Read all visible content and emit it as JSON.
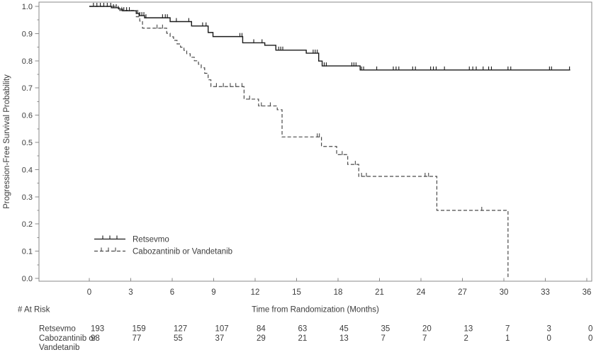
{
  "chart_data": {
    "type": "line",
    "subtype": "kaplan-meier-step",
    "title": "",
    "xlabel": "Time from Randomization (Months)",
    "ylabel": "Progression-Free Survival Probability",
    "xlim": [
      0,
      36
    ],
    "x_tick_step": 3,
    "x_ticks": [
      0,
      3,
      6,
      9,
      12,
      15,
      18,
      21,
      24,
      27,
      30,
      33,
      36
    ],
    "ylim": [
      0.0,
      1.0
    ],
    "y_tick_step": 0.1,
    "y_minor_tick_step": 0.05,
    "y_ticks": [
      "0.0",
      "0.1",
      "0.2",
      "0.3",
      "0.4",
      "0.5",
      "0.6",
      "0.7",
      "0.8",
      "0.9",
      "1.0"
    ],
    "grid": "off",
    "legend_position": "inside-lower-left",
    "colors": {
      "retsevmo": "#1a1a1a",
      "comparator": "#4a4a4a",
      "axis": "#8a8a8a",
      "text": "#3c3c3c"
    },
    "series": [
      {
        "name": "Retsevmo",
        "line_style": "solid",
        "color": "#1a1a1a",
        "end_month": 34.8,
        "steps": [
          [
            0,
            1.0
          ],
          [
            1.6,
            0.995
          ],
          [
            2.15,
            0.99
          ],
          [
            2.4,
            0.984
          ],
          [
            3.4,
            0.974
          ],
          [
            3.6,
            0.966
          ],
          [
            4.0,
            0.958
          ],
          [
            5.85,
            0.944
          ],
          [
            7.4,
            0.928
          ],
          [
            8.6,
            0.904
          ],
          [
            8.95,
            0.889
          ],
          [
            11.1,
            0.866
          ],
          [
            12.7,
            0.857
          ],
          [
            13.5,
            0.839
          ],
          [
            15.7,
            0.828
          ],
          [
            16.6,
            0.799
          ],
          [
            16.85,
            0.781
          ],
          [
            19.6,
            0.766
          ]
        ],
        "censor_months": [
          0.3,
          0.55,
          0.8,
          1.05,
          1.3,
          1.55,
          1.75,
          1.95,
          2.5,
          2.7,
          2.9,
          3.5,
          3.65,
          3.8,
          3.95,
          4.1,
          5.3,
          5.5,
          5.65,
          6.3,
          7.2,
          8.2,
          8.45,
          10.9,
          11.05,
          11.9,
          12.5,
          13.7,
          13.85,
          14.0,
          16.2,
          16.35,
          16.5,
          17.0,
          17.15,
          19.0,
          19.15,
          19.3,
          19.7,
          19.85,
          20.8,
          22.0,
          22.2,
          22.4,
          23.4,
          23.6,
          24.7,
          24.9,
          25.1,
          25.7,
          27.5,
          27.75,
          28.0,
          28.5,
          28.9,
          29.1,
          30.3,
          30.5,
          33.3,
          33.45,
          34.75
        ]
      },
      {
        "name": "Cabozantinib or Vandetanib",
        "line_style": "dashed",
        "color": "#4a4a4a",
        "end_month": 30.3,
        "steps": [
          [
            0,
            1.0
          ],
          [
            2.1,
            0.985
          ],
          [
            3.4,
            0.962
          ],
          [
            3.65,
            0.946
          ],
          [
            3.85,
            0.92
          ],
          [
            5.6,
            0.901
          ],
          [
            5.85,
            0.888
          ],
          [
            6.1,
            0.875
          ],
          [
            6.35,
            0.862
          ],
          [
            6.6,
            0.85
          ],
          [
            6.85,
            0.838
          ],
          [
            7.05,
            0.826
          ],
          [
            7.3,
            0.813
          ],
          [
            7.6,
            0.8
          ],
          [
            7.9,
            0.787
          ],
          [
            8.1,
            0.774
          ],
          [
            8.35,
            0.754
          ],
          [
            8.6,
            0.73
          ],
          [
            8.8,
            0.705
          ],
          [
            11.2,
            0.659
          ],
          [
            12.25,
            0.634
          ],
          [
            13.6,
            0.62
          ],
          [
            13.95,
            0.52
          ],
          [
            16.8,
            0.485
          ],
          [
            17.9,
            0.455
          ],
          [
            18.7,
            0.419
          ],
          [
            19.5,
            0.375
          ],
          [
            25.15,
            0.25
          ],
          [
            30.3,
            0.0
          ]
        ],
        "censor_months": [
          2.35,
          4.9,
          5.3,
          9.2,
          9.7,
          10.2,
          10.6,
          11.05,
          11.6,
          12.45,
          13.1,
          16.5,
          16.65,
          18.3,
          19.25,
          19.7,
          20.05,
          24.3,
          24.55,
          28.4
        ]
      }
    ],
    "at_risk": {
      "label": "# At Risk",
      "times": [
        0,
        3,
        6,
        9,
        12,
        15,
        18,
        21,
        24,
        27,
        30,
        33,
        36
      ],
      "rows": [
        {
          "label_lines": [
            "Retsevmo"
          ],
          "counts": [
            193,
            159,
            127,
            107,
            84,
            63,
            45,
            35,
            20,
            13,
            7,
            3,
            0
          ]
        },
        {
          "label_lines": [
            "Cabozantinib or",
            "Vandetanib"
          ],
          "counts": [
            98,
            77,
            55,
            37,
            29,
            21,
            13,
            7,
            7,
            2,
            1,
            0,
            0
          ]
        }
      ]
    }
  }
}
